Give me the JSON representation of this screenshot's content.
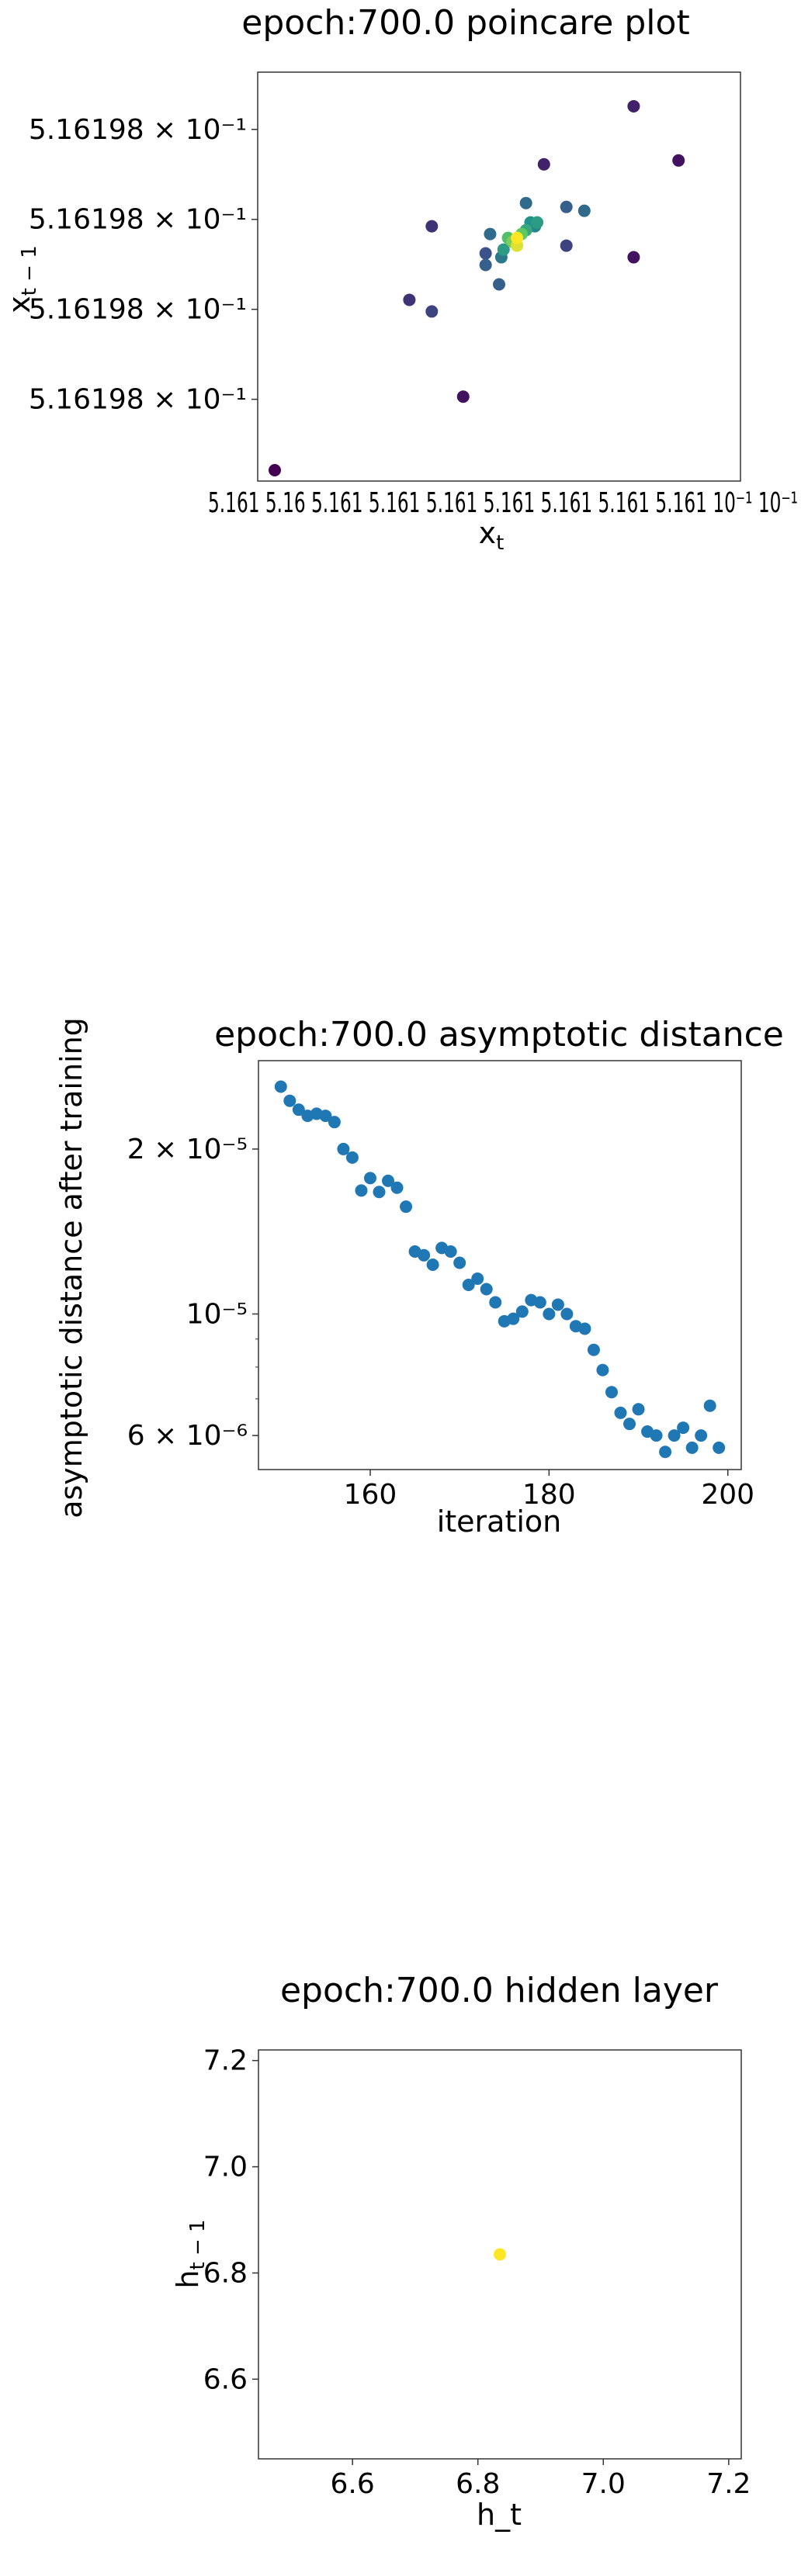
{
  "chart_data": [
    {
      "type": "scatter",
      "title": "epoch:700.0 poincare plot",
      "xlabel": "x",
      "xlabel_sub": "t",
      "ylabel": "x",
      "ylabel_sub": "t − 1",
      "y_ticks": [
        "5.16198 × 10⁻¹",
        "5.16198 × 10⁻¹",
        "5.16198 × 10⁻¹",
        "5.16198 × 10⁻¹"
      ],
      "x_ticks_overlapped": "5.161 5.16 5.161 5.161 5.161 5.161 5.161 5.161 5.161 10⁻¹ 10⁻¹",
      "colormap": "viridis",
      "x": [
        0.0,
        0.3,
        0.35,
        0.35,
        0.42,
        0.47,
        0.47,
        0.48,
        0.5,
        0.505,
        0.51,
        0.52,
        0.53,
        0.54,
        0.54,
        0.55,
        0.56,
        0.56,
        0.57,
        0.58,
        0.585,
        0.6,
        0.65,
        0.65,
        0.69,
        0.8,
        0.8,
        0.9
      ],
      "y": [
        0.0,
        0.44,
        0.41,
        0.63,
        0.19,
        0.56,
        0.53,
        0.61,
        0.48,
        0.55,
        0.57,
        0.6,
        0.59,
        0.58,
        0.6,
        0.61,
        0.69,
        0.62,
        0.64,
        0.63,
        0.64,
        0.79,
        0.58,
        0.68,
        0.67,
        0.55,
        0.94,
        0.8
      ],
      "c": [
        0.0,
        0.15,
        0.2,
        0.15,
        0.05,
        0.25,
        0.3,
        0.35,
        0.3,
        0.4,
        0.55,
        0.7,
        0.8,
        0.95,
        1.0,
        0.75,
        0.35,
        0.6,
        0.5,
        0.45,
        0.55,
        0.1,
        0.2,
        0.3,
        0.35,
        0.05,
        0.1,
        0.05
      ]
    },
    {
      "type": "scatter",
      "title": "epoch:700.0 asymptotic distance",
      "xlabel": "iteration",
      "ylabel": "asymptotic distance after training",
      "yscale": "log",
      "xlim": [
        147.5,
        201.5
      ],
      "ylim": [
        5.2e-06,
        2.9e-05
      ],
      "x_ticks": [
        160,
        180,
        200
      ],
      "x_tick_labels": [
        "160",
        "180",
        "200"
      ],
      "y_ticks": [
        6e-06,
        1e-05,
        2e-05
      ],
      "y_tick_labels": [
        "6 × 10⁻⁶",
        "10⁻⁵",
        "2 × 10⁻⁵"
      ],
      "color": "#1f77b4",
      "x": [
        150,
        151,
        152,
        153,
        154,
        155,
        156,
        157,
        158,
        159,
        160,
        161,
        162,
        163,
        164,
        165,
        166,
        167,
        168,
        169,
        170,
        171,
        172,
        173,
        174,
        175,
        176,
        177,
        178,
        179,
        180,
        181,
        182,
        183,
        184,
        185,
        186,
        187,
        188,
        189,
        190,
        191,
        192,
        193,
        194,
        195,
        196,
        197,
        198,
        199
      ],
      "y": [
        2.6e-05,
        2.45e-05,
        2.36e-05,
        2.3e-05,
        2.32e-05,
        2.3e-05,
        2.24e-05,
        2e-05,
        1.93e-05,
        1.68e-05,
        1.77e-05,
        1.67e-05,
        1.75e-05,
        1.7e-05,
        1.57e-05,
        1.3e-05,
        1.28e-05,
        1.23e-05,
        1.32e-05,
        1.3e-05,
        1.24e-05,
        1.13e-05,
        1.16e-05,
        1.11e-05,
        1.05e-05,
        9.7e-06,
        9.8e-06,
        1.01e-05,
        1.06e-05,
        1.05e-05,
        1e-05,
        1.04e-05,
        1e-05,
        9.5e-06,
        9.4e-06,
        8.6e-06,
        7.9e-06,
        7.2e-06,
        6.6e-06,
        6.3e-06,
        6.7e-06,
        6.1e-06,
        6e-06,
        5.6e-06,
        6e-06,
        6.2e-06,
        5.7e-06,
        6e-06,
        6.8e-06,
        5.7e-06
      ]
    },
    {
      "type": "scatter",
      "title": "epoch:700.0 hidden layer",
      "xlabel": "h_t",
      "ylabel": "h",
      "ylabel_sub": "t − 1",
      "xlim": [
        6.45,
        7.22
      ],
      "ylim": [
        6.45,
        7.22
      ],
      "x_ticks": [
        6.6,
        6.8,
        7.0,
        7.2
      ],
      "x_tick_labels": [
        "6.6",
        "6.8",
        "7.0",
        "7.2"
      ],
      "y_ticks": [
        6.6,
        6.8,
        7.0,
        7.2
      ],
      "y_tick_labels": [
        "6.6",
        "6.8",
        "7.0",
        "7.2"
      ],
      "color": "#fde725",
      "x": [
        6.835
      ],
      "y": [
        6.835
      ]
    }
  ]
}
